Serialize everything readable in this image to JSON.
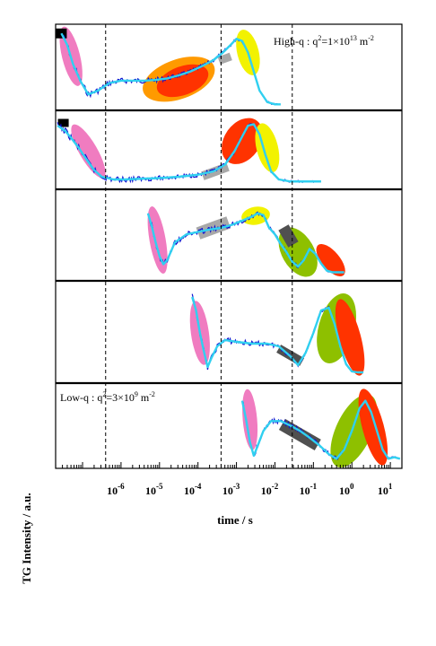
{
  "chart_data": {
    "type": "line",
    "xscale": "log",
    "xlim_exponents": [
      -7.7,
      1.3
    ],
    "x_tick_exponents": [
      -6,
      -5,
      -4,
      -3,
      -2,
      -1,
      0,
      1
    ],
    "x_tick_labels": [
      {
        "base": "10",
        "exp": "-6"
      },
      {
        "base": "10",
        "exp": "-5"
      },
      {
        "base": "10",
        "exp": "-4"
      },
      {
        "base": "10",
        "exp": "-3"
      },
      {
        "base": "10",
        "exp": "-2"
      },
      {
        "base": "10",
        "exp": "-1"
      },
      {
        "base": "10",
        "exp": "0"
      },
      {
        "base": "10",
        "exp": "1"
      }
    ],
    "xlabel": "time / s",
    "ylabel": "TG Intensity / a.u.",
    "vlines_exponents": [
      -6.4,
      -3.4,
      -1.55
    ],
    "ylim": [
      0,
      1
    ],
    "colors": {
      "data": "#1010d0",
      "fit": "#30d0f0",
      "pink": "#f07cc0",
      "red": "#ff3300",
      "orange": "#ff9a00",
      "yellow": "#f2f200",
      "green": "#8ec000",
      "gray_light": "#a8a8a8",
      "gray_dark": "#505050"
    },
    "panels": [
      {
        "annotation": {
          "prefix": "High-q  :  q",
          "sup1": "2",
          "mid": "=1×10",
          "sup2": "13",
          "unit": " m",
          "sup3": "-2"
        },
        "series": {
          "x": [
            -7.55,
            -7.4,
            -7.25,
            -7.05,
            -6.85,
            -6.6,
            -6.3,
            -6.0,
            -5.7,
            -5.4,
            -5.1,
            -4.8,
            -4.5,
            -4.2,
            -3.9,
            -3.6,
            -3.35,
            -3.15,
            -3.0,
            -2.85,
            -2.7,
            -2.55,
            -2.4,
            -2.2,
            -2.0,
            -1.85
          ],
          "y": [
            0.95,
            0.8,
            0.55,
            0.32,
            0.15,
            0.2,
            0.3,
            0.33,
            0.33,
            0.33,
            0.34,
            0.36,
            0.4,
            0.45,
            0.52,
            0.6,
            0.7,
            0.8,
            0.88,
            0.85,
            0.7,
            0.45,
            0.2,
            0.05,
            0.02,
            0.02
          ]
        }
      },
      {
        "annotation": null,
        "series": {
          "x": [
            -7.65,
            -7.45,
            -7.3,
            -7.1,
            -6.9,
            -6.7,
            -6.5,
            -6.2,
            -5.9,
            -5.5,
            -5.0,
            -4.5,
            -4.0,
            -3.6,
            -3.3,
            -3.05,
            -2.85,
            -2.7,
            -2.55,
            -2.4,
            -2.25,
            -2.1,
            -1.9,
            -1.6,
            -1.2,
            -0.8
          ],
          "y": [
            0.88,
            0.8,
            0.7,
            0.55,
            0.38,
            0.22,
            0.12,
            0.08,
            0.08,
            0.09,
            0.1,
            0.12,
            0.15,
            0.2,
            0.3,
            0.5,
            0.72,
            0.88,
            0.9,
            0.75,
            0.45,
            0.2,
            0.08,
            0.05,
            0.05,
            0.05
          ]
        }
      },
      {
        "annotation": null,
        "series": {
          "x": [
            -5.3,
            -5.2,
            -5.1,
            -5.0,
            -4.9,
            -4.8,
            -4.6,
            -4.3,
            -4.0,
            -3.7,
            -3.4,
            -3.1,
            -2.8,
            -2.6,
            -2.45,
            -2.3,
            -2.15,
            -2.0,
            -1.85,
            -1.7,
            -1.55,
            -1.4,
            -1.25,
            -1.1,
            -0.95,
            -0.8,
            -0.65,
            -0.5,
            -0.35,
            -0.2
          ],
          "y": [
            0.78,
            0.62,
            0.42,
            0.25,
            0.15,
            0.2,
            0.42,
            0.52,
            0.55,
            0.58,
            0.6,
            0.64,
            0.7,
            0.74,
            0.78,
            0.76,
            0.6,
            0.52,
            0.4,
            0.3,
            0.18,
            0.12,
            0.2,
            0.34,
            0.28,
            0.16,
            0.07,
            0.05,
            0.05,
            0.05
          ]
        }
      },
      {
        "annotation": null,
        "series": {
          "x": [
            -4.15,
            -4.05,
            -3.95,
            -3.85,
            -3.75,
            -3.65,
            -3.5,
            -3.3,
            -3.0,
            -2.6,
            -2.2,
            -1.9,
            -1.6,
            -1.4,
            -1.2,
            -1.0,
            -0.8,
            -0.6,
            -0.45,
            -0.3,
            -0.15,
            0.0,
            0.15,
            0.3
          ],
          "y": [
            0.9,
            0.75,
            0.5,
            0.3,
            0.12,
            0.22,
            0.35,
            0.42,
            0.4,
            0.38,
            0.38,
            0.35,
            0.24,
            0.14,
            0.28,
            0.5,
            0.75,
            0.78,
            0.6,
            0.35,
            0.15,
            0.07,
            0.06,
            0.06
          ]
        }
      },
      {
        "annotation": {
          "prefix": "Low-q  :  q",
          "sup1": "2",
          "mid": "=3×10",
          "sup2": "9",
          "unit": " m",
          "sup3": "-2"
        },
        "series": {
          "x": [
            -2.85,
            -2.75,
            -2.65,
            -2.55,
            -2.45,
            -2.3,
            -2.1,
            -1.85,
            -1.6,
            -1.35,
            -1.1,
            -0.85,
            -0.6,
            -0.4,
            -0.2,
            0.0,
            0.2,
            0.35,
            0.5,
            0.65,
            0.8,
            0.95,
            1.1,
            1.25
          ],
          "y": [
            0.85,
            0.6,
            0.3,
            0.12,
            0.25,
            0.45,
            0.58,
            0.58,
            0.52,
            0.45,
            0.36,
            0.26,
            0.14,
            0.08,
            0.2,
            0.45,
            0.75,
            0.85,
            0.7,
            0.45,
            0.2,
            0.08,
            0.1,
            0.08
          ]
        }
      }
    ]
  }
}
